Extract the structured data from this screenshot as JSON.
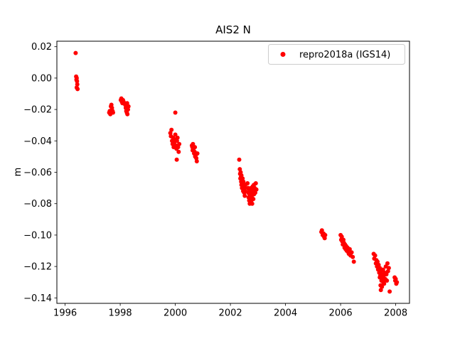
{
  "figure": {
    "title": "AIS2 N",
    "ylabel": "m",
    "legend_label": "repro2018a (IGS14)",
    "accent_color": "#ff0000",
    "spine_color": "#000000",
    "legend_border_color": "#cccccc"
  },
  "chart_data": {
    "type": "scatter",
    "title": "AIS2 N",
    "xlabel": "",
    "ylabel": "m",
    "grid": false,
    "legend_position": "upper right",
    "xlim": [
      1995.7,
      2008.5
    ],
    "ylim": [
      -0.1435,
      0.0235
    ],
    "xticks": [
      1996,
      1998,
      2000,
      2002,
      2004,
      2006,
      2008
    ],
    "xtick_labels": [
      "1996",
      "1998",
      "2000",
      "2002",
      "2004",
      "2006",
      "2008"
    ],
    "yticks": [
      0.02,
      0.0,
      -0.02,
      -0.04,
      -0.06,
      -0.08,
      -0.1,
      -0.12,
      -0.14
    ],
    "ytick_labels": [
      "0.02",
      "0.00",
      "−0.02",
      "−0.04",
      "−0.06",
      "−0.08",
      "−0.10",
      "−0.12",
      "−0.14"
    ],
    "series": [
      {
        "name": "repro2018a (IGS14)",
        "color": "#ff0000",
        "marker": "circle",
        "points": [
          [
            1996.38,
            0.016
          ],
          [
            1996.4,
            0.001
          ],
          [
            1996.41,
            -0.001
          ],
          [
            1996.42,
            0.0
          ],
          [
            1996.43,
            -0.002
          ],
          [
            1996.44,
            -0.004
          ],
          [
            1996.42,
            -0.006
          ],
          [
            1996.45,
            -0.007
          ],
          [
            1997.6,
            -0.022
          ],
          [
            1997.62,
            -0.021
          ],
          [
            1997.64,
            -0.023
          ],
          [
            1997.66,
            -0.018
          ],
          [
            1997.68,
            -0.017
          ],
          [
            1997.7,
            -0.019
          ],
          [
            1997.72,
            -0.021
          ],
          [
            1997.74,
            -0.022
          ],
          [
            1998.02,
            -0.014
          ],
          [
            1998.04,
            -0.013
          ],
          [
            1998.06,
            -0.015
          ],
          [
            1998.08,
            -0.016
          ],
          [
            1998.1,
            -0.014
          ],
          [
            1998.12,
            -0.015
          ],
          [
            1998.18,
            -0.017
          ],
          [
            1998.2,
            -0.019
          ],
          [
            1998.22,
            -0.021
          ],
          [
            1998.24,
            -0.022
          ],
          [
            1998.26,
            -0.023
          ],
          [
            1998.28,
            -0.02
          ],
          [
            1998.3,
            -0.018
          ],
          [
            1998.25,
            -0.016
          ],
          [
            1999.82,
            -0.035
          ],
          [
            1999.84,
            -0.037
          ],
          [
            1999.86,
            -0.033
          ],
          [
            1999.88,
            -0.04
          ],
          [
            1999.9,
            -0.042
          ],
          [
            1999.92,
            -0.038
          ],
          [
            1999.94,
            -0.044
          ],
          [
            1999.96,
            -0.041
          ],
          [
            1999.98,
            -0.039
          ],
          [
            2000.0,
            -0.022
          ],
          [
            2000.0,
            -0.036
          ],
          [
            2000.02,
            -0.043
          ],
          [
            2000.04,
            -0.045
          ],
          [
            2000.05,
            -0.052
          ],
          [
            2000.06,
            -0.04
          ],
          [
            2000.08,
            -0.038
          ],
          [
            2000.1,
            -0.044
          ],
          [
            2000.12,
            -0.047
          ],
          [
            2000.14,
            -0.042
          ],
          [
            2000.6,
            -0.043
          ],
          [
            2000.62,
            -0.044
          ],
          [
            2000.63,
            -0.046
          ],
          [
            2000.64,
            -0.042
          ],
          [
            2000.66,
            -0.045
          ],
          [
            2000.68,
            -0.048
          ],
          [
            2000.7,
            -0.047
          ],
          [
            2000.71,
            -0.044
          ],
          [
            2000.72,
            -0.05
          ],
          [
            2000.74,
            -0.049
          ],
          [
            2000.76,
            -0.051
          ],
          [
            2000.78,
            -0.053
          ],
          [
            2000.8,
            -0.048
          ],
          [
            2002.32,
            -0.052
          ],
          [
            2002.34,
            -0.058
          ],
          [
            2002.35,
            -0.061
          ],
          [
            2002.36,
            -0.064
          ],
          [
            2002.37,
            -0.06
          ],
          [
            2002.38,
            -0.063
          ],
          [
            2002.39,
            -0.066
          ],
          [
            2002.4,
            -0.062
          ],
          [
            2002.4,
            -0.068
          ],
          [
            2002.41,
            -0.065
          ],
          [
            2002.42,
            -0.07
          ],
          [
            2002.43,
            -0.067
          ],
          [
            2002.44,
            -0.064
          ],
          [
            2002.45,
            -0.069
          ],
          [
            2002.46,
            -0.072
          ],
          [
            2002.47,
            -0.066
          ],
          [
            2002.48,
            -0.071
          ],
          [
            2002.49,
            -0.068
          ],
          [
            2002.5,
            -0.073
          ],
          [
            2002.51,
            -0.07
          ],
          [
            2002.52,
            -0.075
          ],
          [
            2002.53,
            -0.072
          ],
          [
            2002.54,
            -0.068
          ],
          [
            2002.62,
            -0.067
          ],
          [
            2002.64,
            -0.07
          ],
          [
            2002.65,
            -0.073
          ],
          [
            2002.66,
            -0.076
          ],
          [
            2002.67,
            -0.071
          ],
          [
            2002.68,
            -0.078
          ],
          [
            2002.69,
            -0.074
          ],
          [
            2002.7,
            -0.08
          ],
          [
            2002.71,
            -0.077
          ],
          [
            2002.72,
            -0.072
          ],
          [
            2002.73,
            -0.079
          ],
          [
            2002.74,
            -0.075
          ],
          [
            2002.75,
            -0.07
          ],
          [
            2002.76,
            -0.078
          ],
          [
            2002.77,
            -0.073
          ],
          [
            2002.78,
            -0.076
          ],
          [
            2002.79,
            -0.08
          ],
          [
            2002.8,
            -0.074
          ],
          [
            2002.81,
            -0.069
          ],
          [
            2002.82,
            -0.072
          ],
          [
            2002.83,
            -0.077
          ],
          [
            2002.84,
            -0.071
          ],
          [
            2002.85,
            -0.068
          ],
          [
            2002.86,
            -0.074
          ],
          [
            2002.88,
            -0.07
          ],
          [
            2002.9,
            -0.073
          ],
          [
            2002.92,
            -0.067
          ],
          [
            2002.94,
            -0.071
          ],
          [
            2005.3,
            -0.098
          ],
          [
            2005.32,
            -0.097
          ],
          [
            2005.35,
            -0.1
          ],
          [
            2005.38,
            -0.099
          ],
          [
            2005.4,
            -0.101
          ],
          [
            2005.42,
            -0.102
          ],
          [
            2005.44,
            -0.1
          ],
          [
            2006.0,
            -0.1
          ],
          [
            2006.02,
            -0.103
          ],
          [
            2006.04,
            -0.101
          ],
          [
            2006.06,
            -0.104
          ],
          [
            2006.08,
            -0.106
          ],
          [
            2006.1,
            -0.103
          ],
          [
            2006.12,
            -0.105
          ],
          [
            2006.14,
            -0.108
          ],
          [
            2006.16,
            -0.106
          ],
          [
            2006.18,
            -0.109
          ],
          [
            2006.2,
            -0.107
          ],
          [
            2006.22,
            -0.11
          ],
          [
            2006.25,
            -0.108
          ],
          [
            2006.28,
            -0.111
          ],
          [
            2006.3,
            -0.112
          ],
          [
            2006.33,
            -0.109
          ],
          [
            2006.36,
            -0.113
          ],
          [
            2006.4,
            -0.111
          ],
          [
            2006.44,
            -0.114
          ],
          [
            2006.48,
            -0.117
          ],
          [
            2007.2,
            -0.112
          ],
          [
            2007.22,
            -0.115
          ],
          [
            2007.25,
            -0.113
          ],
          [
            2007.28,
            -0.118
          ],
          [
            2007.3,
            -0.116
          ],
          [
            2007.32,
            -0.12
          ],
          [
            2007.34,
            -0.117
          ],
          [
            2007.36,
            -0.122
          ],
          [
            2007.38,
            -0.119
          ],
          [
            2007.4,
            -0.124
          ],
          [
            2007.42,
            -0.121
          ],
          [
            2007.42,
            -0.127
          ],
          [
            2007.44,
            -0.126
          ],
          [
            2007.45,
            -0.132
          ],
          [
            2007.46,
            -0.123
          ],
          [
            2007.46,
            -0.135
          ],
          [
            2007.48,
            -0.129
          ],
          [
            2007.5,
            -0.125
          ],
          [
            2007.5,
            -0.133
          ],
          [
            2007.52,
            -0.128
          ],
          [
            2007.54,
            -0.122
          ],
          [
            2007.55,
            -0.13
          ],
          [
            2007.56,
            -0.126
          ],
          [
            2007.58,
            -0.131
          ],
          [
            2007.6,
            -0.124
          ],
          [
            2007.62,
            -0.128
          ],
          [
            2007.64,
            -0.12
          ],
          [
            2007.66,
            -0.125
          ],
          [
            2007.68,
            -0.129
          ],
          [
            2007.7,
            -0.118
          ],
          [
            2007.72,
            -0.123
          ],
          [
            2007.75,
            -0.121
          ],
          [
            2007.78,
            -0.136
          ],
          [
            2007.96,
            -0.127
          ],
          [
            2007.98,
            -0.129
          ],
          [
            2008.0,
            -0.128
          ],
          [
            2008.02,
            -0.131
          ],
          [
            2008.04,
            -0.13
          ]
        ]
      }
    ]
  }
}
